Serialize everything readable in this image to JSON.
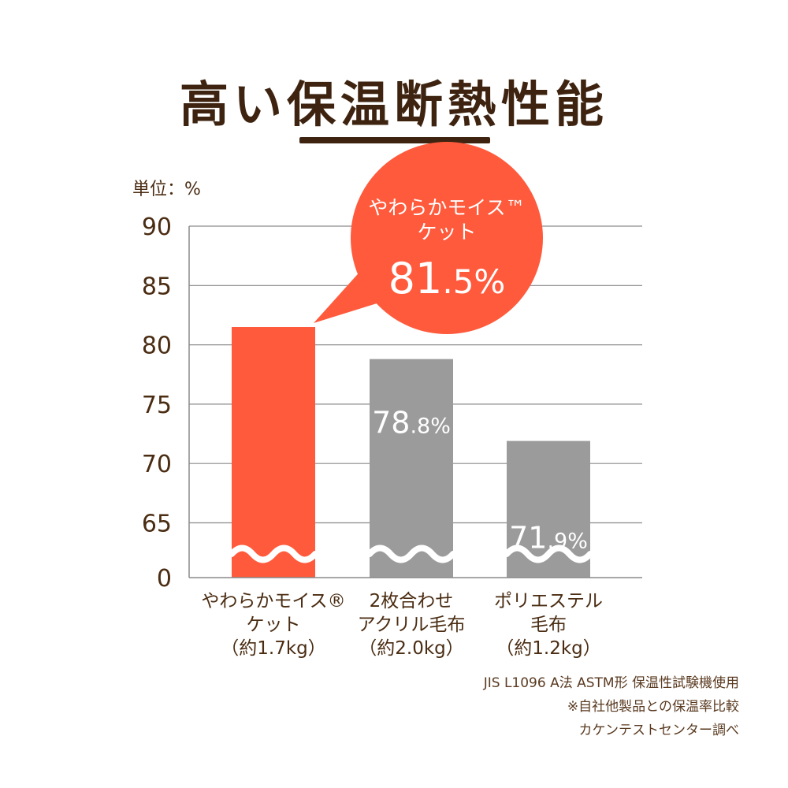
{
  "header": {
    "title": "高い保温断熱性能"
  },
  "unit_label": "単位：%",
  "colors": {
    "highlight": "#ff5a3c",
    "neutral": "#9b9b9b",
    "text": "#4a2c12",
    "grid": "#8a8a8a"
  },
  "chart_data": {
    "type": "bar",
    "ylabel": "単位：%",
    "yticks": [
      "90",
      "85",
      "80",
      "75",
      "70",
      "65",
      "0"
    ],
    "ylim": [
      60,
      90
    ],
    "axis_break": true,
    "grid": true,
    "categories": [
      {
        "lines": [
          "やわらかモイス®",
          "ケット",
          "（約1.7kg）"
        ]
      },
      {
        "lines": [
          "2枚合わせ",
          "アクリル毛布",
          "（約2.0kg）"
        ]
      },
      {
        "lines": [
          "ポリエステル",
          "毛布",
          "（約1.2kg）"
        ]
      }
    ],
    "values": [
      81.5,
      78.8,
      71.9
    ],
    "data_labels": [
      "",
      "78.8%",
      "71.9%"
    ],
    "bar_colors": [
      "#ff5a3c",
      "#9b9b9b",
      "#9b9b9b"
    ]
  },
  "callout": {
    "line1": "やわらかモイス™",
    "line2": "ケット",
    "value": "81.5%"
  },
  "notes": [
    "JIS L1096 A法 ASTM形 保温性試験機使用",
    "※自社他製品との保温率比較",
    "カケンテストセンター調べ"
  ]
}
